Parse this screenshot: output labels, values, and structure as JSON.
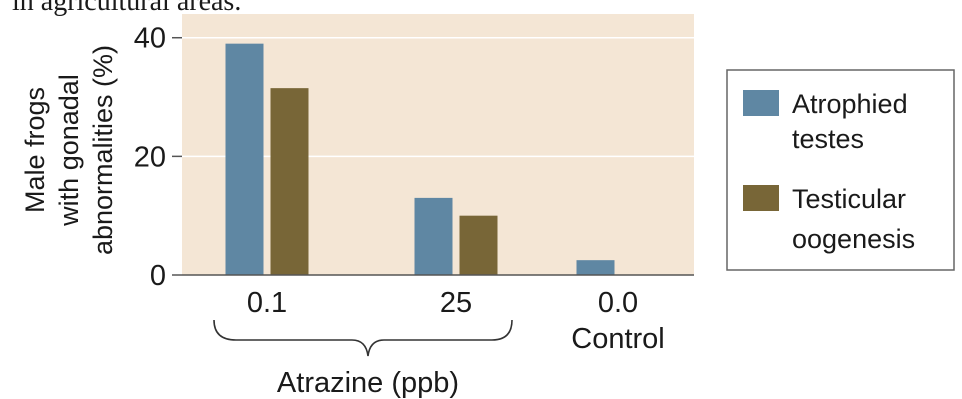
{
  "caption_fragment": "in agricultural areas.",
  "chart_data": {
    "type": "bar",
    "categories": [
      "0.1",
      "25",
      "0.0"
    ],
    "category_sublabels": [
      "",
      "",
      "Control"
    ],
    "group_bracket_label": "Atrazine (ppb)",
    "series": [
      {
        "name": "Atrophied testes",
        "values": [
          39,
          13,
          2.5
        ],
        "color": "#5f87a3"
      },
      {
        "name": "Testicular oogenesis",
        "values": [
          31.5,
          10,
          0
        ],
        "color": "#786637"
      }
    ],
    "ylabel_lines": [
      "Male frogs",
      "with gonadal",
      "abnormalities (%)"
    ],
    "yticks": [
      0,
      20,
      40
    ],
    "ylim": [
      0,
      44
    ],
    "grid": true,
    "background_color": "#f4e6d5",
    "legend": {
      "placement": "right",
      "items": [
        {
          "lines": [
            "Atrophied",
            "testes"
          ]
        },
        {
          "lines": [
            "Testicular",
            "oogenesis"
          ]
        }
      ]
    }
  }
}
